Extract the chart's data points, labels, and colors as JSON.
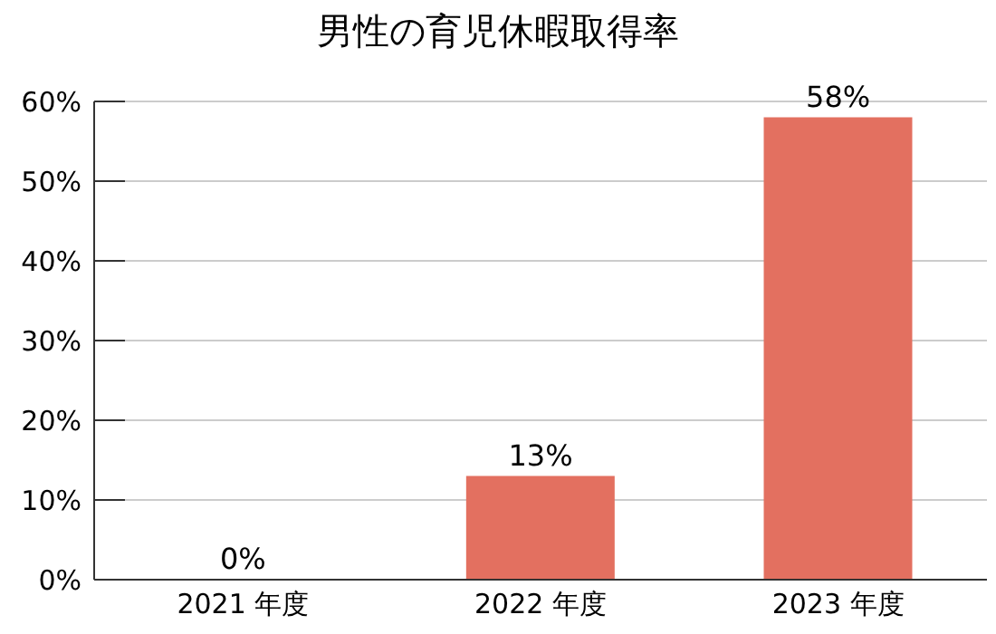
{
  "chart_data": {
    "type": "bar",
    "title": "男性の育児休暇取得率",
    "categories": [
      "2021 年度",
      "2022 年度",
      "2023 年度"
    ],
    "values": [
      0,
      13,
      58
    ],
    "color": "#e37060",
    "value_labels": [
      "0%",
      "13%",
      "58%"
    ],
    "ylim": [
      0,
      60
    ],
    "yticks": [
      {
        "value": 0,
        "label": "0%"
      },
      {
        "value": 10,
        "label": "10%"
      },
      {
        "value": 20,
        "label": "20%"
      },
      {
        "value": 30,
        "label": "30%"
      },
      {
        "value": 40,
        "label": "40%"
      },
      {
        "value": 50,
        "label": "50%"
      },
      {
        "value": 60,
        "label": "60%"
      }
    ],
    "grid": "y"
  }
}
